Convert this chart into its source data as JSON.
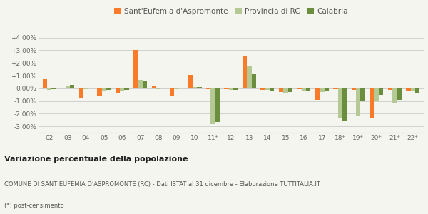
{
  "years": [
    "02",
    "03",
    "04",
    "05",
    "06",
    "07",
    "08",
    "09",
    "10",
    "11*",
    "12",
    "13",
    "14",
    "15",
    "16",
    "17",
    "18*",
    "19*",
    "20*",
    "21*",
    "22*"
  ],
  "santeufemia": [
    0.7,
    0.05,
    -0.75,
    -0.65,
    -0.35,
    3.05,
    0.2,
    -0.6,
    1.05,
    -0.05,
    -0.05,
    2.6,
    -0.1,
    -0.3,
    -0.05,
    -0.9,
    -0.05,
    -0.1,
    -2.4,
    -0.1,
    -0.2
  ],
  "provincia": [
    -0.1,
    0.2,
    -0.05,
    -0.25,
    -0.2,
    0.65,
    -0.05,
    -0.05,
    0.1,
    -2.85,
    -0.1,
    1.75,
    -0.15,
    -0.35,
    -0.2,
    -0.3,
    -2.35,
    -2.2,
    -0.95,
    -1.2,
    -0.2
  ],
  "calabria": [
    -0.05,
    0.25,
    0.0,
    -0.15,
    -0.1,
    0.55,
    0.0,
    0.0,
    0.1,
    -2.65,
    -0.1,
    1.1,
    -0.2,
    -0.3,
    -0.2,
    -0.25,
    -2.6,
    -1.0,
    -0.5,
    -0.9,
    -0.35
  ],
  "color_santeufemia": "#f97b2a",
  "color_provincia": "#b5c994",
  "color_calabria": "#6b8e3e",
  "background_color": "#f5f5ef",
  "grid_color": "#d0d0d0",
  "title_bold": "Variazione percentuale della popolazione",
  "subtitle": "COMUNE DI SANT’EUFEMIA D’ASPROMONTE (RC) - Dati ISTAT al 31 dicembre - Elaborazione TUTTITALIA.IT",
  "footnote": "(*) post-censimento",
  "legend_labels": [
    "Sant'Eufemia d'Aspromonte",
    "Provincia di RC",
    "Calabria"
  ],
  "ylim": [
    -3.5,
    4.6
  ],
  "yticks": [
    -3.0,
    -2.0,
    -1.0,
    0.0,
    1.0,
    2.0,
    3.0,
    4.0
  ]
}
